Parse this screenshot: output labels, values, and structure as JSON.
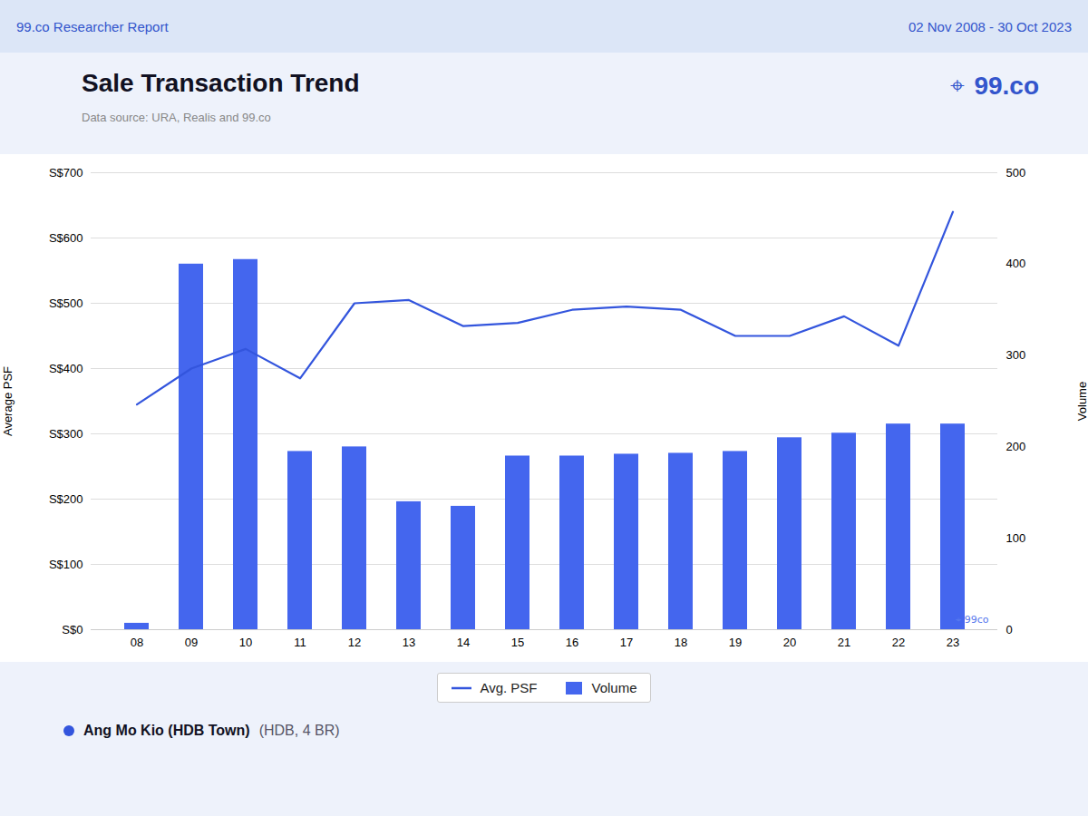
{
  "chart_data": {
    "type": "bar",
    "title": "Sale Transaction Trend",
    "subtitle": "Data source: URA, Realis and 99.co",
    "annotations": [
      "99.co Researcher Report",
      "02 Nov 2008 - 30 Oct 2023",
      "⌖",
      "99.co",
      "⌖ 99co",
      "Ang Mo Kio (HDB Town)",
      "(HDB, 4 BR)"
    ],
    "categories": [
      "08",
      "09",
      "10",
      "11",
      "12",
      "13",
      "14",
      "15",
      "16",
      "17",
      "18",
      "19",
      "20",
      "21",
      "22",
      "23"
    ],
    "series": [
      {
        "name": "Avg. PSF",
        "type": "line",
        "color": "#3355dd",
        "values": [
          345,
          400,
          430,
          385,
          500,
          505,
          465,
          470,
          490,
          495,
          490,
          450,
          450,
          480,
          435,
          640
        ]
      },
      {
        "name": "Volume",
        "type": "bar",
        "color": "#4466ee",
        "axis": "y2",
        "values": [
          7,
          400,
          405,
          195,
          200,
          140,
          135,
          190,
          190,
          192,
          193,
          195,
          210,
          215,
          225,
          225
        ]
      }
    ],
    "y_label": "Average PSF",
    "y2_label": "Volume",
    "ylim": [
      0,
      700
    ],
    "yticks": [
      {
        "value": 0,
        "label": "S$0"
      },
      {
        "value": 100,
        "label": "S$100"
      },
      {
        "value": 200,
        "label": "S$200"
      },
      {
        "value": 300,
        "label": "S$300"
      },
      {
        "value": 400,
        "label": "S$400"
      },
      {
        "value": 500,
        "label": "S$500"
      },
      {
        "value": 600,
        "label": "S$600"
      },
      {
        "value": 700,
        "label": "S$700"
      }
    ],
    "y2lim": [
      0,
      500
    ],
    "y2ticks": [
      0,
      100,
      200,
      300,
      400,
      500
    ],
    "grid": true,
    "legend": "bottom"
  }
}
